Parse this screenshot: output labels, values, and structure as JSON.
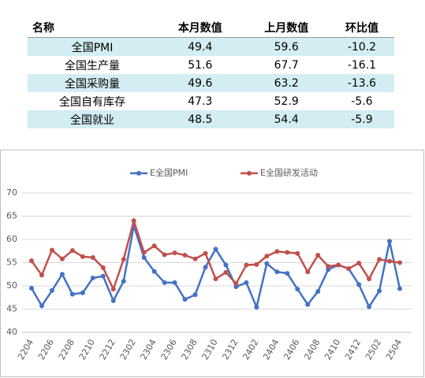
{
  "table": {
    "header": [
      "名称",
      "本月数值",
      "上月数值",
      "环比值"
    ],
    "rows": [
      [
        "全国PMI",
        49.4,
        59.6,
        -10.2
      ],
      [
        "全国生产量",
        51.6,
        67.7,
        -16.1
      ],
      [
        "全国采购量",
        49.6,
        63.2,
        -13.6
      ],
      [
        "全国自有库存",
        47.3,
        52.9,
        -5.6
      ],
      [
        "全国就业",
        48.5,
        54.4,
        -5.9
      ]
    ]
  },
  "chart_data": {
    "type": "line",
    "categories": [
      "2204",
      null,
      "2206",
      null,
      "2208",
      null,
      "2210",
      null,
      "2212",
      null,
      "2302",
      null,
      "2304",
      null,
      "2306",
      null,
      "2308",
      null,
      "2310",
      null,
      "2312",
      null,
      "2402",
      null,
      "2404",
      null,
      "2406",
      null,
      "2408",
      null,
      "2410",
      null,
      "2412",
      null,
      "2502",
      null,
      "2504"
    ],
    "series": [
      {
        "name": "E全国PMI",
        "color": "#4472c4",
        "values": [
          49.5,
          45.7,
          49.0,
          52.5,
          48.2,
          48.5,
          51.7,
          52.1,
          46.8,
          51.0,
          62.9,
          56.1,
          53.1,
          50.7,
          50.7,
          47.1,
          48.1,
          54.0,
          57.9,
          54.5,
          49.8,
          50.7,
          45.4,
          54.8,
          53.0,
          52.7,
          49.3,
          46.0,
          48.8,
          53.5,
          54.5,
          53.7,
          50.3,
          45.5,
          48.9,
          59.6,
          49.4
        ]
      },
      {
        "name": "E全国研发活动",
        "color": "#c0504d",
        "values": [
          55.4,
          52.3,
          57.7,
          55.8,
          57.6,
          56.3,
          56.1,
          53.9,
          49.3,
          55.7,
          64.0,
          57.2,
          58.6,
          56.7,
          57.1,
          56.6,
          55.8,
          57.0,
          51.5,
          52.9,
          50.5,
          54.5,
          54.6,
          56.4,
          57.4,
          57.2,
          57.0,
          53.0,
          56.6,
          54.2,
          54.5,
          53.7,
          54.9,
          51.5,
          55.7,
          55.3,
          55.0
        ]
      }
    ],
    "ylim": [
      40,
      70
    ],
    "yticks": [
      40,
      45,
      50,
      55,
      60,
      65,
      70
    ],
    "grid": true,
    "legend": "top"
  }
}
